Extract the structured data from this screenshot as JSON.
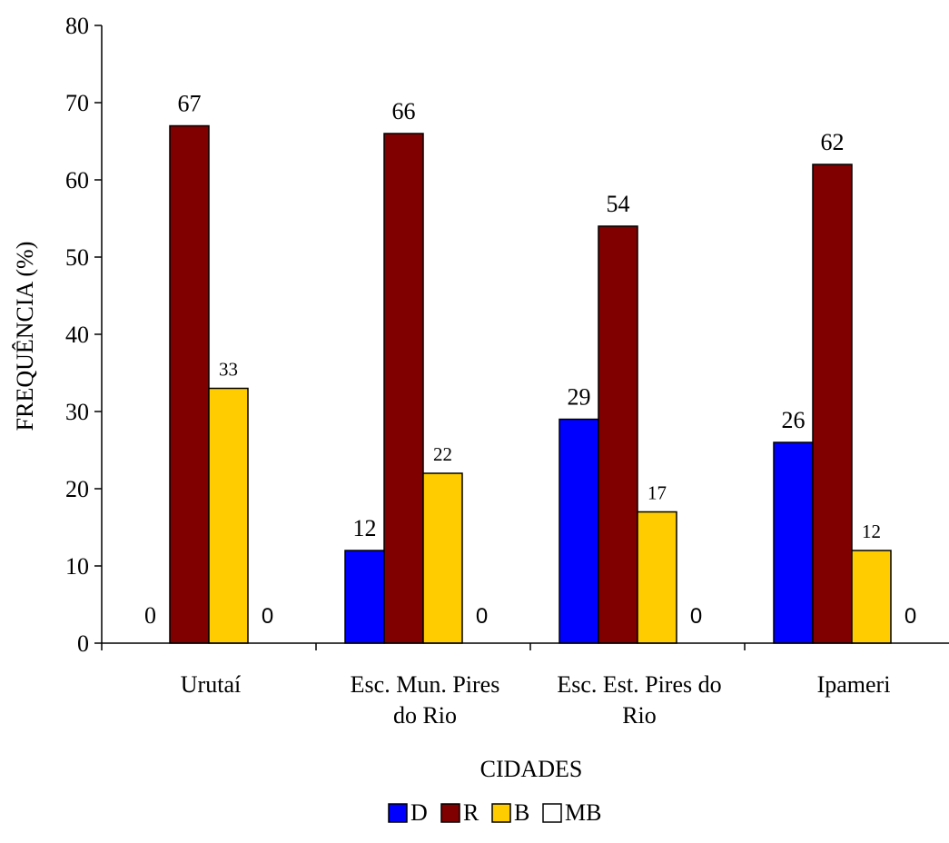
{
  "chart_data": {
    "type": "bar",
    "xlabel": "CIDADES",
    "ylabel": "FREQUÊNCIA (%)",
    "ylim": [
      0,
      80
    ],
    "yticks": [
      0,
      10,
      20,
      30,
      40,
      50,
      60,
      70,
      80
    ],
    "categories": [
      [
        "Urutaí"
      ],
      [
        "Esc. Mun. Pires",
        "do Rio"
      ],
      [
        "Esc. Est. Pires do",
        "Rio"
      ],
      [
        "Ipameri"
      ]
    ],
    "series": [
      {
        "name": "D",
        "color": "#0000FF",
        "values": [
          0,
          12,
          29,
          26
        ]
      },
      {
        "name": "R",
        "color": "#800000",
        "values": [
          67,
          66,
          54,
          62
        ]
      },
      {
        "name": "B",
        "color": "#FFCC00",
        "values": [
          33,
          22,
          17,
          12
        ]
      },
      {
        "name": "MB",
        "color": "#FFFFFF",
        "values": [
          0,
          0,
          0,
          0
        ]
      }
    ],
    "legend_position": "bottom",
    "grid": false
  }
}
